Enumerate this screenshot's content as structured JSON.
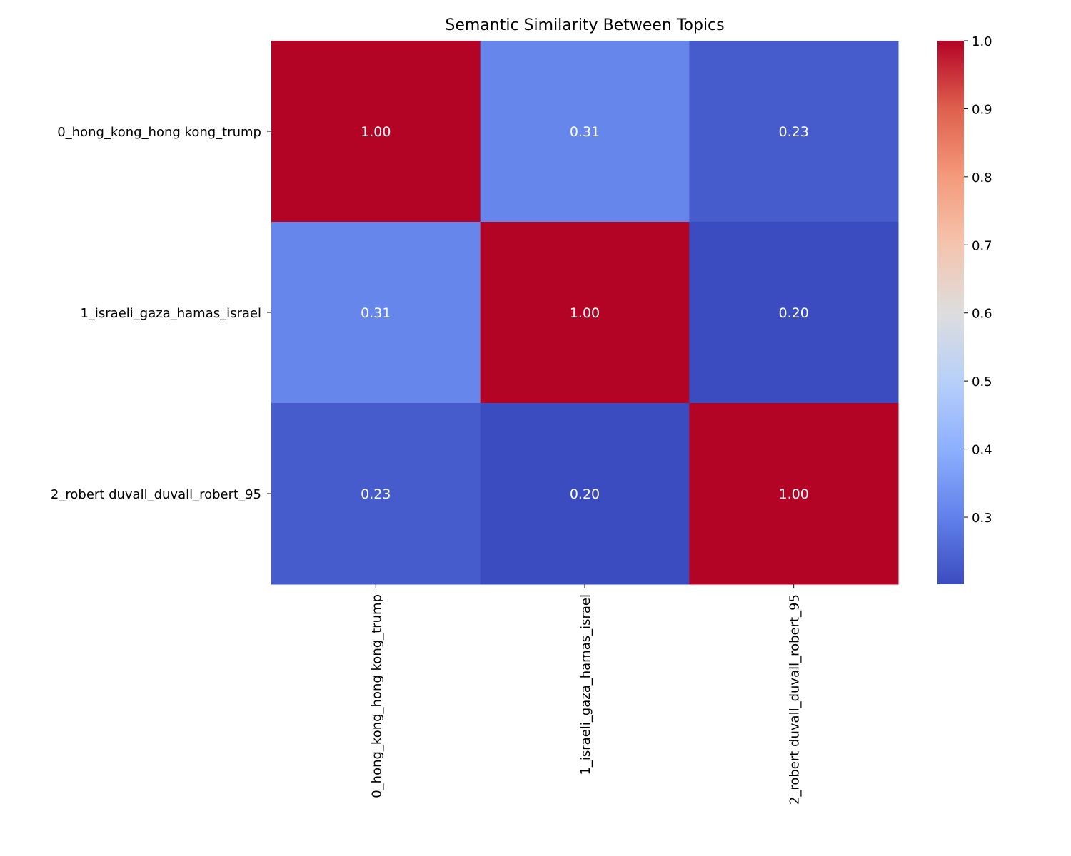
{
  "chart_data": {
    "type": "heatmap",
    "title": "Semantic Similarity Between Topics",
    "row_labels": [
      "0_hong_kong_hong kong_trump",
      "1_israeli_gaza_hamas_israel",
      "2_robert duvall_duvall_robert_95"
    ],
    "col_labels": [
      "0_hong_kong_hong kong_trump",
      "1_israeli_gaza_hamas_israel",
      "2_robert duvall_duvall_robert_95"
    ],
    "values": [
      [
        1.0,
        0.31,
        0.23
      ],
      [
        0.31,
        1.0,
        0.2
      ],
      [
        0.23,
        0.2,
        1.0
      ]
    ],
    "annotations": [
      [
        "1.00",
        "0.31",
        "0.23"
      ],
      [
        "0.31",
        "1.00",
        "0.20"
      ],
      [
        "0.23",
        "0.20",
        "1.00"
      ]
    ],
    "colormap": "coolwarm",
    "colorbar": {
      "range": [
        0.2,
        1.0
      ],
      "ticks": [
        0.3,
        0.4,
        0.5,
        0.6,
        0.7,
        0.8,
        0.9,
        1.0
      ],
      "tick_labels": [
        "0.3",
        "0.4",
        "0.5",
        "0.6",
        "0.7",
        "0.8",
        "0.9",
        "1.0"
      ]
    }
  }
}
